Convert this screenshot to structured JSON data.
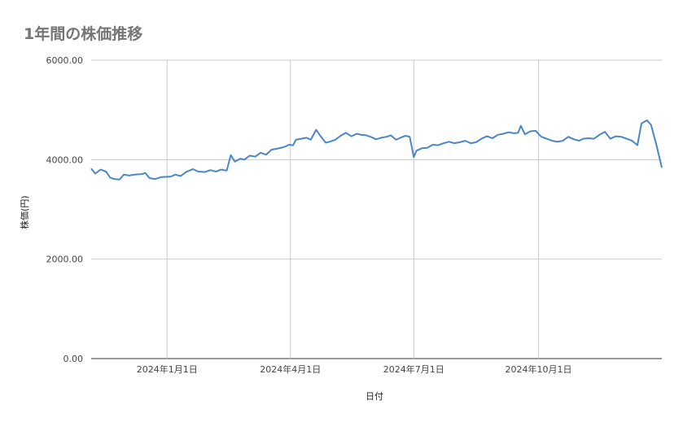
{
  "chart_data": {
    "type": "line",
    "title": "1年間の株価推移",
    "xlabel": "日付",
    "ylabel": "株価(円)",
    "x_range": [
      "2023-11-06",
      "2024-12-31"
    ],
    "x_ticks": [
      {
        "date": "2024-01-01",
        "label": "2024年1月1日"
      },
      {
        "date": "2024-04-01",
        "label": "2024年4月1日"
      },
      {
        "date": "2024-07-01",
        "label": "2024年7月1日"
      },
      {
        "date": "2024-10-01",
        "label": "2024年10月1日"
      }
    ],
    "ylim": [
      0,
      6000
    ],
    "y_ticks": [
      {
        "value": 0,
        "label": "0.00"
      },
      {
        "value": 2000,
        "label": "2000.00"
      },
      {
        "value": 4000,
        "label": "4000.00"
      },
      {
        "value": 6000,
        "label": "6000.00"
      }
    ],
    "grid": true,
    "line_color": "#4a86c8",
    "series": [
      {
        "name": "",
        "points": [
          [
            "2023-11-06",
            3820
          ],
          [
            "2023-11-09",
            3720
          ],
          [
            "2023-11-13",
            3800
          ],
          [
            "2023-11-17",
            3760
          ],
          [
            "2023-11-20",
            3640
          ],
          [
            "2023-11-23",
            3610
          ],
          [
            "2023-11-27",
            3600
          ],
          [
            "2023-11-30",
            3700
          ],
          [
            "2023-12-04",
            3680
          ],
          [
            "2023-12-08",
            3700
          ],
          [
            "2023-12-13",
            3710
          ],
          [
            "2023-12-16",
            3730
          ],
          [
            "2023-12-19",
            3630
          ],
          [
            "2023-12-23",
            3610
          ],
          [
            "2023-12-28",
            3650
          ],
          [
            "2024-01-04",
            3660
          ],
          [
            "2024-01-07",
            3700
          ],
          [
            "2024-01-11",
            3670
          ],
          [
            "2024-01-15",
            3750
          ],
          [
            "2024-01-20",
            3810
          ],
          [
            "2024-01-24",
            3760
          ],
          [
            "2024-01-29",
            3750
          ],
          [
            "2024-02-02",
            3790
          ],
          [
            "2024-02-06",
            3760
          ],
          [
            "2024-02-10",
            3800
          ],
          [
            "2024-02-14",
            3780
          ],
          [
            "2024-02-17",
            4090
          ],
          [
            "2024-02-20",
            3960
          ],
          [
            "2024-02-24",
            4020
          ],
          [
            "2024-02-27",
            4000
          ],
          [
            "2024-03-02",
            4080
          ],
          [
            "2024-03-06",
            4060
          ],
          [
            "2024-03-10",
            4140
          ],
          [
            "2024-03-14",
            4100
          ],
          [
            "2024-03-18",
            4200
          ],
          [
            "2024-03-22",
            4220
          ],
          [
            "2024-03-27",
            4250
          ],
          [
            "2024-03-31",
            4300
          ],
          [
            "2024-04-03",
            4290
          ],
          [
            "2024-04-05",
            4400
          ],
          [
            "2024-04-09",
            4420
          ],
          [
            "2024-04-13",
            4440
          ],
          [
            "2024-04-16",
            4400
          ],
          [
            "2024-04-20",
            4600
          ],
          [
            "2024-04-23",
            4480
          ],
          [
            "2024-04-27",
            4340
          ],
          [
            "2024-04-30",
            4360
          ],
          [
            "2024-05-04",
            4400
          ],
          [
            "2024-05-08",
            4480
          ],
          [
            "2024-05-12",
            4540
          ],
          [
            "2024-05-16",
            4470
          ],
          [
            "2024-05-20",
            4520
          ],
          [
            "2024-05-23",
            4500
          ],
          [
            "2024-05-27",
            4490
          ],
          [
            "2024-05-31",
            4450
          ],
          [
            "2024-06-03",
            4410
          ],
          [
            "2024-06-07",
            4440
          ],
          [
            "2024-06-11",
            4460
          ],
          [
            "2024-06-14",
            4490
          ],
          [
            "2024-06-18",
            4400
          ],
          [
            "2024-06-22",
            4450
          ],
          [
            "2024-06-25",
            4480
          ],
          [
            "2024-06-28",
            4460
          ],
          [
            "2024-07-01",
            4050
          ],
          [
            "2024-07-03",
            4180
          ],
          [
            "2024-07-07",
            4230
          ],
          [
            "2024-07-11",
            4240
          ],
          [
            "2024-07-15",
            4300
          ],
          [
            "2024-07-19",
            4290
          ],
          [
            "2024-07-23",
            4330
          ],
          [
            "2024-07-27",
            4360
          ],
          [
            "2024-07-31",
            4330
          ],
          [
            "2024-08-04",
            4350
          ],
          [
            "2024-08-08",
            4380
          ],
          [
            "2024-08-12",
            4330
          ],
          [
            "2024-08-16",
            4350
          ],
          [
            "2024-08-20",
            4420
          ],
          [
            "2024-08-24",
            4470
          ],
          [
            "2024-08-28",
            4430
          ],
          [
            "2024-09-01",
            4500
          ],
          [
            "2024-09-05",
            4520
          ],
          [
            "2024-09-09",
            4550
          ],
          [
            "2024-09-13",
            4530
          ],
          [
            "2024-09-16",
            4540
          ],
          [
            "2024-09-18",
            4680
          ],
          [
            "2024-09-21",
            4510
          ],
          [
            "2024-09-25",
            4570
          ],
          [
            "2024-09-29",
            4580
          ],
          [
            "2024-10-03",
            4460
          ],
          [
            "2024-10-07",
            4420
          ],
          [
            "2024-10-11",
            4380
          ],
          [
            "2024-10-15",
            4360
          ],
          [
            "2024-10-19",
            4380
          ],
          [
            "2024-10-23",
            4460
          ],
          [
            "2024-10-27",
            4410
          ],
          [
            "2024-10-31",
            4380
          ],
          [
            "2024-11-03",
            4420
          ],
          [
            "2024-11-07",
            4430
          ],
          [
            "2024-11-11",
            4420
          ],
          [
            "2024-11-15",
            4500
          ],
          [
            "2024-11-19",
            4560
          ],
          [
            "2024-11-23",
            4420
          ],
          [
            "2024-11-27",
            4470
          ],
          [
            "2024-12-01",
            4460
          ],
          [
            "2024-12-05",
            4420
          ],
          [
            "2024-12-09",
            4380
          ],
          [
            "2024-12-13",
            4290
          ],
          [
            "2024-12-16",
            4730
          ],
          [
            "2024-12-20",
            4790
          ],
          [
            "2024-12-23",
            4700
          ],
          [
            "2024-12-27",
            4300
          ],
          [
            "2024-12-31",
            3840
          ]
        ]
      }
    ]
  }
}
